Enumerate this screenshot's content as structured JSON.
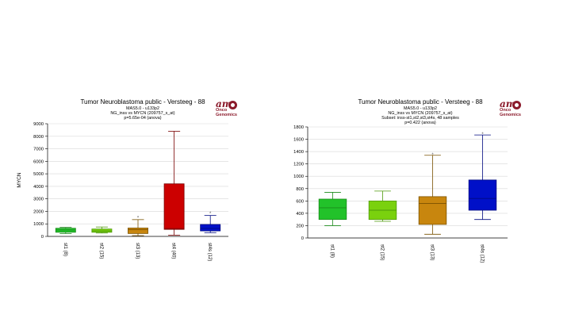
{
  "chart_data": [
    {
      "type": "boxplot",
      "title": "Tumor Neuroblastoma public - Versteeg - 88",
      "subtitle_lines": [
        "MAS5.0 - u133p2",
        "NG_inss vs MYCN (209757_s_at)",
        "p=5.65e-04  (anova)"
      ],
      "ylabel": "MYCN",
      "ylim": [
        0,
        9000
      ],
      "yticks": [
        0,
        1000,
        2000,
        3000,
        4000,
        5000,
        6000,
        7000,
        8000,
        9000
      ],
      "categories": [
        "st1 (8)",
        "st2 (15)",
        "st3 (13)",
        "st4 (40)",
        "st4s (12)"
      ],
      "colors": [
        "#22c22a",
        "#7ad10e",
        "#c8860e",
        "#cc0000",
        "#0010c8"
      ],
      "edge_colors": [
        "#1a8a1a",
        "#4e9a0a",
        "#7a5200",
        "#7a0000",
        "#000a80"
      ],
      "boxes": [
        {
          "whislo": 230,
          "q1": 330,
          "med": 510,
          "q3": 650,
          "whishi": 720,
          "fliers": []
        },
        {
          "whislo": 270,
          "q1": 330,
          "med": 440,
          "q3": 590,
          "whishi": 750,
          "fliers": []
        },
        {
          "whislo": 60,
          "q1": 230,
          "med": 540,
          "q3": 670,
          "whishi": 1340,
          "fliers": [
            1560
          ]
        },
        {
          "whislo": 100,
          "q1": 560,
          "med": 620,
          "q3": 4200,
          "whishi": 8400,
          "fliers": []
        },
        {
          "whislo": 300,
          "q1": 440,
          "med": 640,
          "q3": 950,
          "whishi": 1670,
          "fliers": [
            1900
          ]
        }
      ]
    },
    {
      "type": "boxplot",
      "title": "Tumor Neuroblastoma public - Versteeg - 88",
      "subtitle_lines": [
        "MAS5.0 - u133p2",
        "NG_inss vs MYCN (209757_s_at)",
        "Subset: inss-st1,st2,st3,st4s, 48 samples",
        "p=0.422  (anova)"
      ],
      "ylabel": "MYCN",
      "ylim": [
        0,
        1800
      ],
      "yticks": [
        0,
        200,
        400,
        600,
        800,
        1000,
        1200,
        1400,
        1600,
        1800
      ],
      "categories": [
        "st1 (8)",
        "st2 (15)",
        "st3 (13)",
        "st4s (12)"
      ],
      "colors": [
        "#22c22a",
        "#7ad10e",
        "#c8860e",
        "#0010c8"
      ],
      "edge_colors": [
        "#1a8a1a",
        "#4e9a0a",
        "#7a5200",
        "#000a80"
      ],
      "boxes": [
        {
          "whislo": 200,
          "q1": 300,
          "med": 490,
          "q3": 630,
          "whishi": 740,
          "fliers": []
        },
        {
          "whislo": 270,
          "q1": 300,
          "med": 450,
          "q3": 600,
          "whishi": 760,
          "fliers": []
        },
        {
          "whislo": 60,
          "q1": 220,
          "med": 560,
          "q3": 670,
          "whishi": 1340,
          "fliers": [
            1360
          ]
        },
        {
          "whislo": 300,
          "q1": 450,
          "med": 640,
          "q3": 940,
          "whishi": 1670,
          "fliers": [
            1700
          ]
        }
      ]
    }
  ],
  "logo": {
    "text_am": "am",
    "text_line1": "Onco",
    "text_line2": "Genomics"
  }
}
